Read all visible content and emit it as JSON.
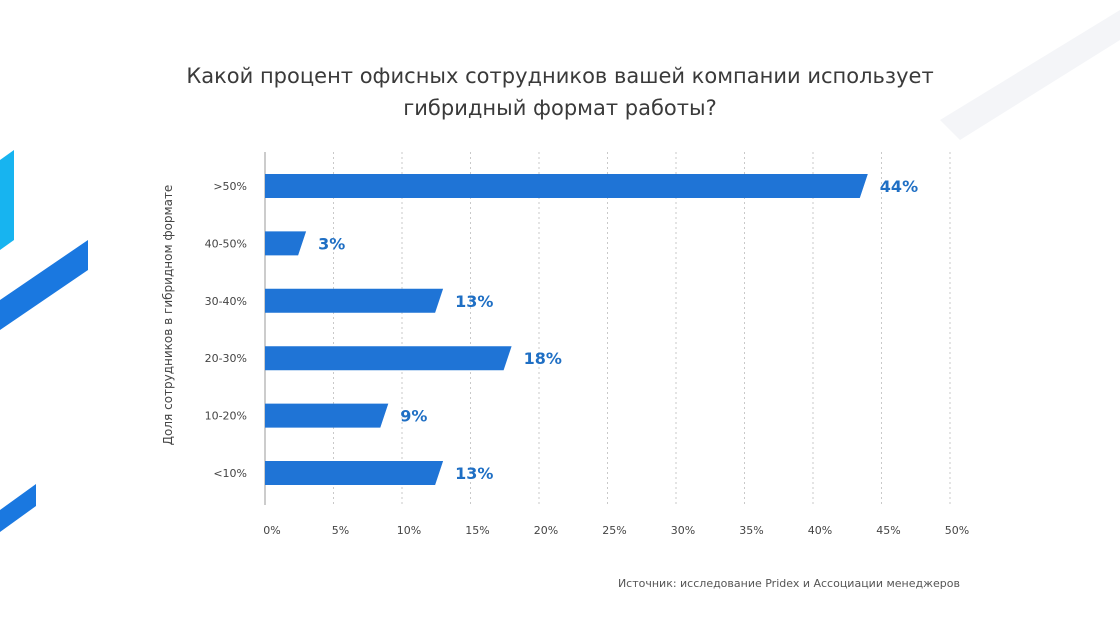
{
  "slide": {
    "title_line1": "Какой процент офисных сотрудников вашей компании использует",
    "title_line2": "гибридный формат работы?",
    "source": "Источник: исследование Pridex и Ассоциации менеджеров"
  },
  "colors": {
    "bar": "#1f74d6",
    "label": "#1f6fc4",
    "grid": "#c9c9c9",
    "deco_cyan": "#17b4f0",
    "deco_blue": "#1a78e0"
  },
  "chart_data": {
    "type": "bar",
    "orientation": "horizontal",
    "title": "Какой процент офисных сотрудников вашей компании использует гибридный формат работы?",
    "ylabel": "Доля сотрудников в гибридном формате",
    "xlabel": "",
    "categories": [
      ">50%",
      "40-50%",
      "30-40%",
      "20-30%",
      "10-20%",
      "<10%"
    ],
    "values": [
      44,
      3,
      13,
      18,
      9,
      13
    ],
    "value_labels": [
      "44%",
      "3%",
      "13%",
      "18%",
      "9%",
      "13%"
    ],
    "xlim": [
      0,
      50
    ],
    "xticks": [
      0,
      5,
      10,
      15,
      20,
      25,
      30,
      35,
      40,
      45,
      50
    ],
    "xtick_labels": [
      "0%",
      "5%",
      "10%",
      "15%",
      "20%",
      "25%",
      "30%",
      "35%",
      "40%",
      "45%",
      "50%"
    ],
    "grid": "vertical dotted"
  }
}
